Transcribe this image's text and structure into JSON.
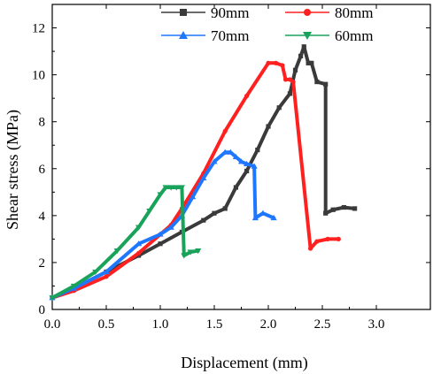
{
  "chart_data": {
    "type": "line",
    "xlabel": "Displacement (mm)",
    "ylabel": "Shear stress (MPa)",
    "xlim": [
      0,
      3.5
    ],
    "ylim": [
      0,
      13
    ],
    "xticks": [
      "0.0",
      "0.5",
      "1.0",
      "1.5",
      "2.0",
      "2.5",
      "3.0"
    ],
    "yticks": [
      "0",
      "2",
      "4",
      "6",
      "8",
      "10",
      "12"
    ],
    "grid": false,
    "legend_placement": "top",
    "series": [
      {
        "name": "90mm",
        "color": "#3a3a3a",
        "marker": "square",
        "x": [
          0.0,
          0.2,
          0.5,
          0.8,
          1.0,
          1.2,
          1.4,
          1.5,
          1.6,
          1.7,
          1.8,
          1.9,
          2.0,
          2.1,
          2.2,
          2.25,
          2.3,
          2.33,
          2.37,
          2.4,
          2.45,
          2.53,
          2.53,
          2.6,
          2.7,
          2.8
        ],
        "y": [
          0.5,
          0.9,
          1.6,
          2.3,
          2.8,
          3.3,
          3.8,
          4.1,
          4.3,
          5.2,
          5.9,
          6.8,
          7.8,
          8.6,
          9.2,
          10.2,
          10.8,
          11.2,
          10.5,
          10.5,
          9.7,
          9.6,
          4.1,
          4.25,
          4.35,
          4.3
        ]
      },
      {
        "name": "80mm",
        "color": "#ff2020",
        "marker": "circle",
        "x": [
          0.0,
          0.2,
          0.5,
          0.8,
          1.0,
          1.1,
          1.2,
          1.4,
          1.6,
          1.8,
          2.0,
          2.07,
          2.13,
          2.16,
          2.2,
          2.23,
          2.39,
          2.45,
          2.55,
          2.65
        ],
        "y": [
          0.5,
          0.8,
          1.4,
          2.4,
          3.2,
          3.6,
          4.3,
          5.8,
          7.6,
          9.1,
          10.5,
          10.5,
          10.4,
          9.8,
          9.8,
          9.7,
          2.6,
          2.9,
          3.0,
          3.0
        ]
      },
      {
        "name": "70mm",
        "color": "#1f77ff",
        "marker": "triangle-up",
        "x": [
          0.0,
          0.2,
          0.5,
          0.8,
          1.0,
          1.1,
          1.2,
          1.3,
          1.4,
          1.5,
          1.6,
          1.65,
          1.7,
          1.75,
          1.8,
          1.87,
          1.88,
          1.95,
          2.05
        ],
        "y": [
          0.5,
          0.9,
          1.6,
          2.8,
          3.2,
          3.5,
          4.0,
          4.8,
          5.6,
          6.3,
          6.7,
          6.7,
          6.5,
          6.3,
          6.2,
          6.1,
          3.9,
          4.1,
          3.9
        ]
      },
      {
        "name": "60mm",
        "color": "#19a35a",
        "marker": "triangle-down",
        "x": [
          0.0,
          0.2,
          0.4,
          0.6,
          0.8,
          0.9,
          1.0,
          1.05,
          1.1,
          1.15,
          1.2,
          1.22,
          1.28,
          1.35
        ],
        "y": [
          0.5,
          1.0,
          1.6,
          2.5,
          3.5,
          4.2,
          4.9,
          5.2,
          5.2,
          5.2,
          5.2,
          2.3,
          2.45,
          2.5
        ]
      }
    ]
  }
}
